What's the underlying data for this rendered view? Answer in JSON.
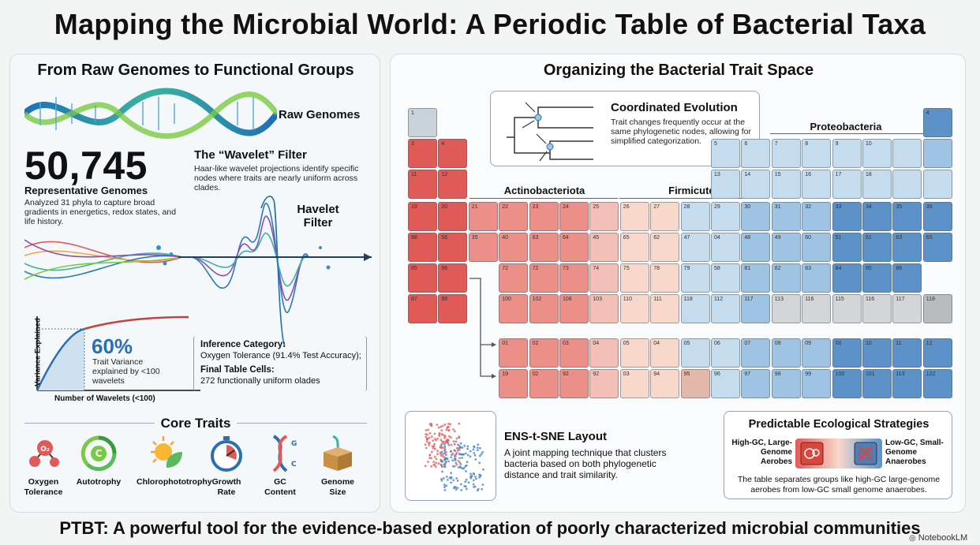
{
  "title": "Mapping the Microbial World: A Periodic Table of Bacterial Taxa",
  "left": {
    "heading": "From Raw Genomes to Functional Groups",
    "raw_genomes_label": "Raw Genomes",
    "genome_count": "50,745",
    "genome_count_label": "Representative Genomes",
    "genome_desc": "Analyzed 31 phyla to capture broad gradients in energetics, redox states, and life history.",
    "wavelet_title": "The “Wavelet” Filter",
    "wavelet_desc": "Haar-like wavelet projections identify specific nodes where traits are nearly uniform across clades.",
    "havelet_label_1": "Havelet",
    "havelet_label_2": "Filter",
    "variance_axis": "Variance Explained",
    "wavelet_axis": "Number of Wavelets (<100)",
    "variance_pct": "60%",
    "variance_desc": "Trait Variance explained by <100 wavelets",
    "inference_title": "Inference Category:",
    "inference_value": "Oxygen Tolerance (91.4% Test Accuracy);",
    "cells_title": "Final Table Cells:",
    "cells_value": "272 functionally uniform olades",
    "core_traits_title": "Core Traits",
    "core_traits": [
      {
        "name": "Oxygen Tolerance",
        "line1": "Oxygen",
        "line2": "Tolerance",
        "icon": "oxygen-icon"
      },
      {
        "name": "Autotrophy",
        "line1": "Autotrophy",
        "line2": "",
        "icon": "recycle-c-icon"
      },
      {
        "name": "Chlorophototrophy",
        "line1": "Chlorophototrophy",
        "line2": "",
        "icon": "sun-leaf-icon"
      },
      {
        "name": "Growth Rate",
        "line1": "Growth",
        "line2": "Rate",
        "icon": "stopwatch-icon"
      },
      {
        "name": "GC Content",
        "line1": "GC",
        "line2": "Content",
        "icon": "dna-icon"
      },
      {
        "name": "Genome Size",
        "line1": "Genome",
        "line2": "Size",
        "icon": "box-dna-icon"
      }
    ]
  },
  "right": {
    "heading": "Organizing the Bacterial Trait Space",
    "coord_title": "Coordinated Evolution",
    "coord_desc": "Trait changes frequently occur at the same phylogenetic nodes, allowing for simplified categorization.",
    "groups": {
      "proteo": "Proteobacteria",
      "actino": "Actinobacteriota",
      "firmi": "Firmicutes"
    },
    "tsne_title": "ENS-t-SNE Layout",
    "tsne_desc": "A joint mapping technique that clusters bacteria based on both phylogenetic distance and trait similarity.",
    "eco_title": "Predictable Ecological Strategies",
    "eco_left": "High-GC, Large-Genome Aerobes",
    "eco_right": "Low-GC, Small-Genome Anaerobes",
    "eco_desc": "The table separates groups like high-GC large-genome aerobes from low-GC small genome anaerobes.",
    "colors": {
      "red_strong": "#e05a58",
      "red_mid": "#ec8f89",
      "red_light": "#f4bfb6",
      "peach": "#f8d8ca",
      "blue_light": "#c5dcee",
      "blue_mid": "#9fc3e2",
      "blue_strong": "#5d92c8",
      "grey": "#d3d5d7"
    }
  },
  "table": {
    "r1": [
      "1",
      "4"
    ],
    "r2": [
      "3",
      "4",
      "5",
      "6",
      "7",
      "8",
      "9",
      "10"
    ],
    "r3": [
      "11",
      "12",
      "13",
      "14",
      "15",
      "16",
      "17",
      "18"
    ],
    "r4": [
      "19",
      "20",
      "21",
      "22",
      "23",
      "24",
      "25",
      "26",
      "27",
      "28",
      "29",
      "30",
      "31",
      "32",
      "33",
      "34",
      "35",
      "36"
    ],
    "r5": [
      "88",
      "56",
      "35",
      "40",
      "63",
      "64",
      "45",
      "65",
      "62",
      "47",
      "04",
      "48",
      "49",
      "60",
      "51",
      "61",
      "63",
      "65"
    ],
    "r6": [
      "85",
      "86",
      "72",
      "72",
      "73",
      "74",
      "75",
      "78",
      "79",
      "58",
      "81",
      "82",
      "83",
      "84",
      "85",
      "86"
    ],
    "r7": [
      "87",
      "88",
      "100",
      "102",
      "108",
      "103",
      "110",
      "111",
      "118",
      "112",
      "117",
      "113",
      "116",
      "115",
      "116",
      "117",
      "118"
    ],
    "r8": [
      "01",
      "02",
      "03",
      "04",
      "05",
      "04",
      "05",
      "06",
      "07",
      "08",
      "09",
      "00",
      "10",
      "11",
      "12"
    ],
    "r9": [
      "19",
      "02",
      "92",
      "92",
      "03",
      "94",
      "95",
      "96",
      "97",
      "98",
      "99",
      "100",
      "101",
      "113",
      "122"
    ]
  },
  "footer": "PTBT: A powerful tool for the evidence-based exploration of poorly characterized microbial communities",
  "brand": "NotebookLM"
}
